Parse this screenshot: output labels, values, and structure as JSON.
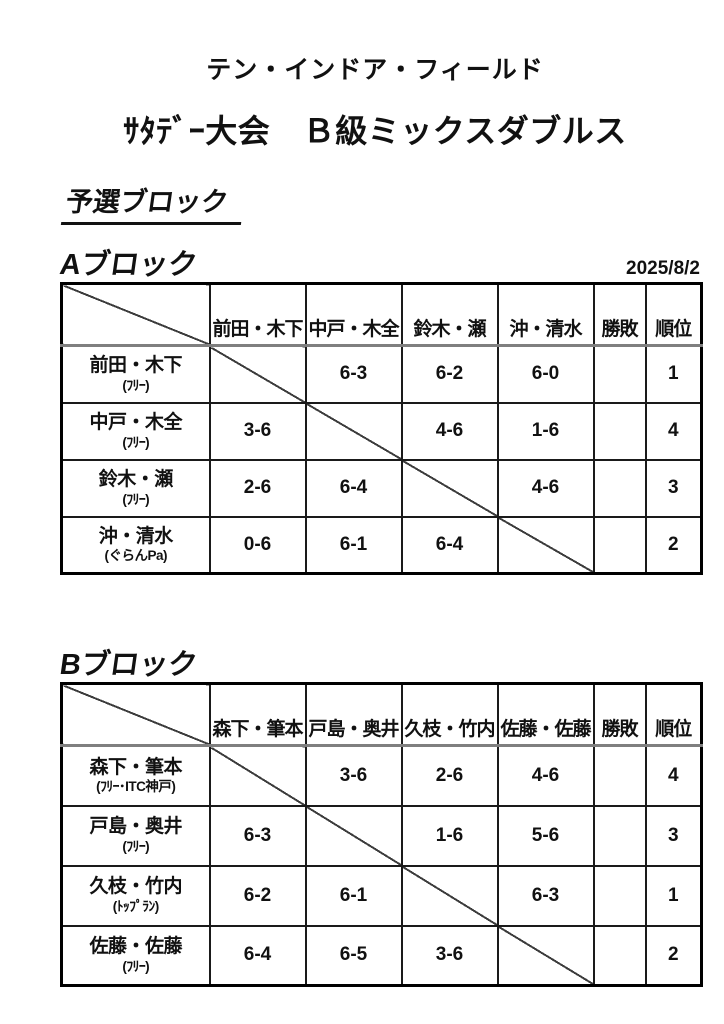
{
  "page": {
    "venue_title": "テン・インドア・フィールド",
    "event_title": "ｻﾀﾃﾞｰ大会　Ｂ級ミックスダブルス",
    "section_heading": "予選ブロック"
  },
  "labels": {
    "win_loss": "勝敗",
    "rank": "順位"
  },
  "blocks": [
    {
      "label": "Aブロック",
      "date": "2025/8/2",
      "opponents": [
        "前田・木下",
        "中戸・木全",
        "鈴木・瀬",
        "沖・清水"
      ],
      "rows": [
        {
          "team": "前田・木下",
          "club": "(ﾌﾘｰ)",
          "scores": [
            "",
            "6-3",
            "6-2",
            "6-0"
          ],
          "win_loss": "",
          "rank": "1"
        },
        {
          "team": "中戸・木全",
          "club": "(ﾌﾘｰ)",
          "scores": [
            "3-6",
            "",
            "4-6",
            "1-6"
          ],
          "win_loss": "",
          "rank": "4"
        },
        {
          "team": "鈴木・瀬",
          "club": "(ﾌﾘｰ)",
          "scores": [
            "2-6",
            "6-4",
            "",
            "4-6"
          ],
          "win_loss": "",
          "rank": "3"
        },
        {
          "team": "沖・清水",
          "club": "(ぐらんPa)",
          "scores": [
            "0-6",
            "6-1",
            "6-4",
            ""
          ],
          "win_loss": "",
          "rank": "2"
        }
      ]
    },
    {
      "label": "Bブロック",
      "date": "",
      "opponents": [
        "森下・筆本",
        "戸島・奥井",
        "久枝・竹内",
        "佐藤・佐藤"
      ],
      "rows": [
        {
          "team": "森下・筆本",
          "club": "(ﾌﾘｰ･ITC神戸)",
          "scores": [
            "",
            "3-6",
            "2-6",
            "4-6"
          ],
          "win_loss": "",
          "rank": "4"
        },
        {
          "team": "戸島・奥井",
          "club": "(ﾌﾘｰ)",
          "scores": [
            "6-3",
            "",
            "1-6",
            "5-6"
          ],
          "win_loss": "",
          "rank": "3"
        },
        {
          "team": "久枝・竹内",
          "club": "(ﾄｯﾌﾟﾗﾝ)",
          "scores": [
            "6-2",
            "6-1",
            "",
            "6-3"
          ],
          "win_loss": "",
          "rank": "1"
        },
        {
          "team": "佐藤・佐藤",
          "club": "(ﾌﾘｰ)",
          "scores": [
            "6-4",
            "6-5",
            "3-6",
            ""
          ],
          "win_loss": "",
          "rank": "2"
        }
      ]
    }
  ]
}
